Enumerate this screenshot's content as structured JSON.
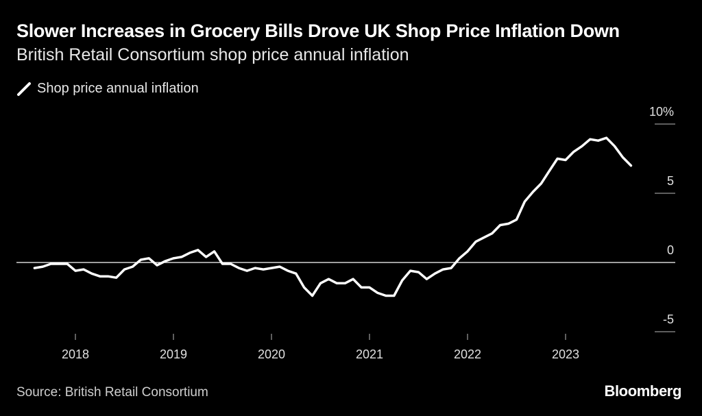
{
  "chart_data": {
    "type": "line",
    "title": "Slower Increases in Grocery Bills Drove UK Shop Price Inflation Down",
    "subtitle": "British Retail Consortium shop price annual inflation",
    "legend": [
      "Shop price annual inflation"
    ],
    "source": "Source: British Retail Consortium",
    "brand": "Bloomberg",
    "x_tick_labels": [
      "2018",
      "2019",
      "2020",
      "2021",
      "2022",
      "2023"
    ],
    "y_ticks": [
      10,
      5,
      0,
      -5
    ],
    "y_tick_labels": [
      "10%",
      "5",
      "0",
      "-5"
    ],
    "ylim": [
      -5,
      10
    ],
    "xlim": [
      2017.5,
      2023.75
    ],
    "series": [
      {
        "name": "Shop price annual inflation",
        "color": "#ffffff",
        "x": [
          2017.583,
          2017.667,
          2017.75,
          2017.833,
          2017.917,
          2018.0,
          2018.083,
          2018.167,
          2018.25,
          2018.333,
          2018.417,
          2018.5,
          2018.583,
          2018.667,
          2018.75,
          2018.833,
          2018.917,
          2019.0,
          2019.083,
          2019.167,
          2019.25,
          2019.333,
          2019.417,
          2019.5,
          2019.583,
          2019.667,
          2019.75,
          2019.833,
          2019.917,
          2020.0,
          2020.083,
          2020.167,
          2020.25,
          2020.333,
          2020.417,
          2020.5,
          2020.583,
          2020.667,
          2020.75,
          2020.833,
          2020.917,
          2021.0,
          2021.083,
          2021.167,
          2021.25,
          2021.333,
          2021.417,
          2021.5,
          2021.583,
          2021.667,
          2021.75,
          2021.833,
          2021.917,
          2022.0,
          2022.083,
          2022.167,
          2022.25,
          2022.333,
          2022.417,
          2022.5,
          2022.583,
          2022.667,
          2022.75,
          2022.833,
          2022.917,
          2023.0,
          2023.083,
          2023.167,
          2023.25,
          2023.333,
          2023.417,
          2023.5,
          2023.583,
          2023.667
        ],
        "values": [
          -0.4,
          -0.3,
          -0.1,
          -0.1,
          -0.1,
          -0.6,
          -0.5,
          -0.8,
          -1.0,
          -1.0,
          -1.1,
          -0.5,
          -0.3,
          0.2,
          0.3,
          -0.2,
          0.1,
          0.3,
          0.4,
          0.7,
          0.9,
          0.4,
          0.8,
          -0.1,
          -0.1,
          -0.4,
          -0.6,
          -0.4,
          -0.5,
          -0.4,
          -0.3,
          -0.6,
          -0.8,
          -1.8,
          -2.4,
          -1.5,
          -1.2,
          -1.5,
          -1.5,
          -1.2,
          -1.8,
          -1.8,
          -2.2,
          -2.4,
          -2.4,
          -1.3,
          -0.6,
          -0.7,
          -1.2,
          -0.8,
          -0.5,
          -0.4,
          0.3,
          0.8,
          1.5,
          1.8,
          2.1,
          2.7,
          2.8,
          3.1,
          4.4,
          5.1,
          5.7,
          6.6,
          7.5,
          7.4,
          8.0,
          8.4,
          8.9,
          8.8,
          9.0,
          8.4,
          7.6,
          7.0
        ]
      }
    ]
  }
}
